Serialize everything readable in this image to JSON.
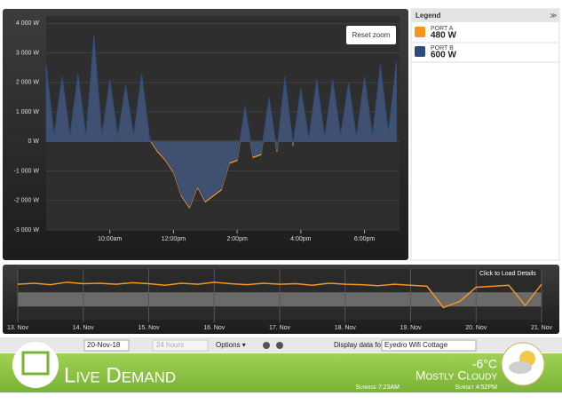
{
  "chart_data": [
    {
      "type": "area",
      "legend_title": "Legend",
      "reset_label": "Reset zoom",
      "x": [
        8.0,
        8.25,
        8.5,
        8.75,
        9.0,
        9.25,
        9.5,
        9.75,
        10.0,
        10.25,
        10.5,
        10.75,
        11.0,
        11.25,
        11.5,
        11.75,
        12.0,
        12.25,
        12.5,
        12.75,
        13.0,
        13.25,
        13.5,
        13.75,
        14.0,
        14.25,
        14.5,
        14.75,
        15.0,
        15.25,
        15.5,
        15.75,
        16.0,
        16.25,
        16.5,
        16.75,
        17.0,
        17.25,
        17.5,
        17.75,
        18.0,
        18.25,
        18.5,
        18.75,
        19.0
      ],
      "series": [
        {
          "name": "PORT A",
          "current": "480 W",
          "color": "#f7941d",
          "values": [
            2500,
            150,
            2100,
            150,
            2200,
            100,
            3400,
            150,
            2000,
            150,
            1800,
            150,
            2200,
            50,
            -350,
            -650,
            -1050,
            -1850,
            -2250,
            -1550,
            -2050,
            -1850,
            -1650,
            -750,
            -650,
            1100,
            -550,
            -450,
            1400,
            -350,
            2100,
            -150,
            1700,
            50,
            2000,
            100,
            2000,
            150,
            1900,
            100,
            2100,
            150,
            2500,
            250,
            2600
          ]
        },
        {
          "name": "PORT B",
          "current": "600 W",
          "color": "#2c4a7a",
          "values": [
            2600,
            200,
            2200,
            200,
            2300,
            150,
            3600,
            200,
            2100,
            200,
            1900,
            200,
            2300,
            100,
            -300,
            -600,
            -1000,
            -1800,
            -2200,
            -1500,
            -2000,
            -1800,
            -1600,
            -700,
            -600,
            1200,
            -500,
            -400,
            1500,
            -300,
            2200,
            -100,
            1800,
            100,
            2100,
            150,
            2100,
            200,
            2000,
            150,
            2200,
            200,
            2600,
            300,
            2700
          ]
        }
      ],
      "xlim": [
        8.0,
        19.1
      ],
      "xticks": [
        {
          "value": 10,
          "label": "10:00am"
        },
        {
          "value": 12,
          "label": "12:00pm"
        },
        {
          "value": 14,
          "label": "2:00pm"
        },
        {
          "value": 16,
          "label": "4:00pm"
        },
        {
          "value": 18,
          "label": "6:00pm"
        }
      ],
      "ylim": [
        -3000,
        4250
      ],
      "yticks": [
        {
          "value": 4000,
          "label": "4 000 W"
        },
        {
          "value": 3000,
          "label": "3 000 W"
        },
        {
          "value": 2000,
          "label": "2 000 W"
        },
        {
          "value": 1000,
          "label": "1 000 W"
        },
        {
          "value": 0,
          "label": "0 W"
        },
        {
          "value": -1000,
          "label": "-1 000 W"
        },
        {
          "value": -2000,
          "label": "-2 000 W"
        },
        {
          "value": -3000,
          "label": "-3 000 W"
        }
      ],
      "grid": true
    },
    {
      "type": "line",
      "note_label": "Click to Load Details",
      "color": "#f7941d",
      "x": [
        0,
        0.25,
        0.5,
        0.75,
        1,
        1.25,
        1.5,
        1.75,
        2,
        2.25,
        2.5,
        2.75,
        3,
        3.25,
        3.5,
        3.75,
        4,
        4.25,
        4.5,
        4.75,
        5,
        5.25,
        5.5,
        5.75,
        6,
        6.25,
        6.5,
        6.75,
        7,
        7.25,
        7.5,
        7.75,
        8
      ],
      "values": [
        1500,
        1600,
        1450,
        1700,
        1550,
        1600,
        1500,
        1650,
        1550,
        1400,
        1600,
        1500,
        1700,
        1550,
        1450,
        1600,
        1500,
        1550,
        1400,
        1600,
        1500,
        1450,
        1350,
        1500,
        1400,
        1300,
        -800,
        -200,
        1200,
        1300,
        1400,
        -600,
        1500
      ],
      "xlim": [
        0,
        8
      ],
      "ylim": [
        -2000,
        3000
      ],
      "xticks": [
        {
          "value": 0,
          "label": "13. Nov"
        },
        {
          "value": 1,
          "label": "14. Nov"
        },
        {
          "value": 2,
          "label": "15. Nov"
        },
        {
          "value": 3,
          "label": "16. Nov"
        },
        {
          "value": 4,
          "label": "17. Nov"
        },
        {
          "value": 5,
          "label": "18. Nov"
        },
        {
          "value": 6,
          "label": "19. Nov"
        },
        {
          "value": 7,
          "label": "20. Nov"
        },
        {
          "value": 8,
          "label": "21. Nov"
        }
      ]
    }
  ],
  "toolbar": {
    "date": "20-Nov-18",
    "range": "24 hours",
    "options": "Options ▾",
    "display_label": "Display data for",
    "device": "Eyedro Wifi Cottage"
  },
  "banner": {
    "title": "Live Demand",
    "condition": "Mostly Cloudy",
    "temperature": "-6°C",
    "sunrise": "Sunrise 7:23AM",
    "sunset": "Sunset 4:52PM"
  }
}
